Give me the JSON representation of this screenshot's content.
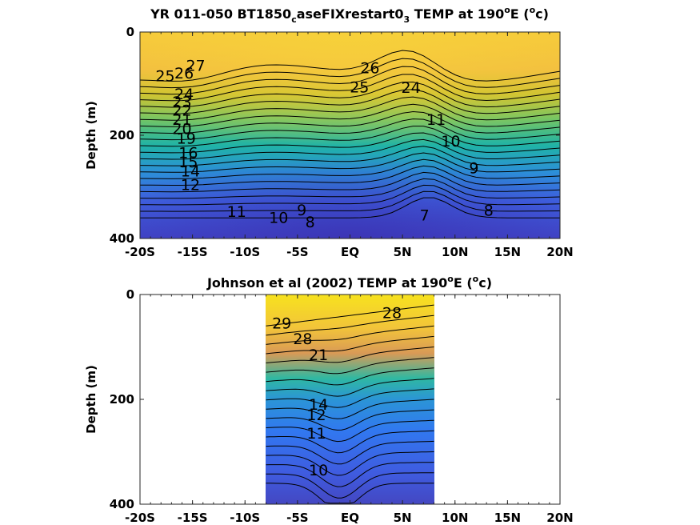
{
  "chart_data": [
    {
      "type": "contour",
      "title_parts": {
        "pre": "YR 011-050 BT1850",
        "sub1": "c",
        "mid": "aseFIXrestart0",
        "sub2": "3",
        "post": " TEMP at 190",
        "deg": "o",
        "unit_pre": "E (",
        "unit_sup": "o",
        "unit_post": "c)"
      },
      "ylabel": "Depth (m)",
      "xticks": [
        "-20S",
        "-15S",
        "-10S",
        "-5S",
        "EQ",
        "5N",
        "10N",
        "15N",
        "20N"
      ],
      "yticks": [
        "0",
        "200",
        "400"
      ],
      "xlim": [
        -20,
        20
      ],
      "ylim": [
        0,
        400
      ],
      "data_lon_range": [
        -20,
        20
      ],
      "contour_labels": [
        {
          "text": "27",
          "lat": -14.7,
          "depth": 75
        },
        {
          "text": "26",
          "lat": -15.8,
          "depth": 90
        },
        {
          "text": "25",
          "lat": -17.6,
          "depth": 95
        },
        {
          "text": "24",
          "lat": -15.8,
          "depth": 130
        },
        {
          "text": "23",
          "lat": -16.0,
          "depth": 146
        },
        {
          "text": "22",
          "lat": -16.0,
          "depth": 162
        },
        {
          "text": "21",
          "lat": -16.0,
          "depth": 180
        },
        {
          "text": "20",
          "lat": -16.0,
          "depth": 198
        },
        {
          "text": "19",
          "lat": -15.6,
          "depth": 216
        },
        {
          "text": "16",
          "lat": -15.4,
          "depth": 244
        },
        {
          "text": "15",
          "lat": -15.4,
          "depth": 262
        },
        {
          "text": "14",
          "lat": -15.2,
          "depth": 280
        },
        {
          "text": "12",
          "lat": -15.2,
          "depth": 306
        },
        {
          "text": "11",
          "lat": -10.8,
          "depth": 358
        },
        {
          "text": "10",
          "lat": -6.8,
          "depth": 370
        },
        {
          "text": "9",
          "lat": -4.6,
          "depth": 355
        },
        {
          "text": "8",
          "lat": -3.8,
          "depth": 378
        },
        {
          "text": "7",
          "lat": 7.1,
          "depth": 365
        },
        {
          "text": "26",
          "lat": 1.9,
          "depth": 80
        },
        {
          "text": "25",
          "lat": 0.9,
          "depth": 117
        },
        {
          "text": "24",
          "lat": 5.8,
          "depth": 118
        },
        {
          "text": "11",
          "lat": 8.2,
          "depth": 180
        },
        {
          "text": "10",
          "lat": 9.6,
          "depth": 222
        },
        {
          "text": "9",
          "lat": 11.8,
          "depth": 274
        },
        {
          "text": "8",
          "lat": 13.2,
          "depth": 356
        }
      ]
    },
    {
      "type": "contour",
      "title_parts": {
        "pre": "Johnson et al (2002) TEMP at 190",
        "deg": "o",
        "unit_pre": "E (",
        "unit_sup": "o",
        "unit_post": "c)"
      },
      "ylabel": "Depth (m)",
      "xticks": [
        "-20S",
        "-15S",
        "-10S",
        "-5S",
        "EQ",
        "5N",
        "10N",
        "15N",
        "20N"
      ],
      "yticks": [
        "0",
        "200",
        "400"
      ],
      "xlim": [
        -20,
        20
      ],
      "ylim": [
        0,
        400
      ],
      "data_lon_range": [
        -8,
        8
      ],
      "contour_labels": [
        {
          "text": "29",
          "lat": -6.5,
          "depth": 65
        },
        {
          "text": "28",
          "lat": -4.5,
          "depth": 95
        },
        {
          "text": "28",
          "lat": 4.0,
          "depth": 45
        },
        {
          "text": "21",
          "lat": -3.0,
          "depth": 125
        },
        {
          "text": "14",
          "lat": -3.0,
          "depth": 220
        },
        {
          "text": "12",
          "lat": -3.2,
          "depth": 240
        },
        {
          "text": "11",
          "lat": -3.2,
          "depth": 275
        },
        {
          "text": "10",
          "lat": -3.0,
          "depth": 345
        }
      ]
    }
  ]
}
